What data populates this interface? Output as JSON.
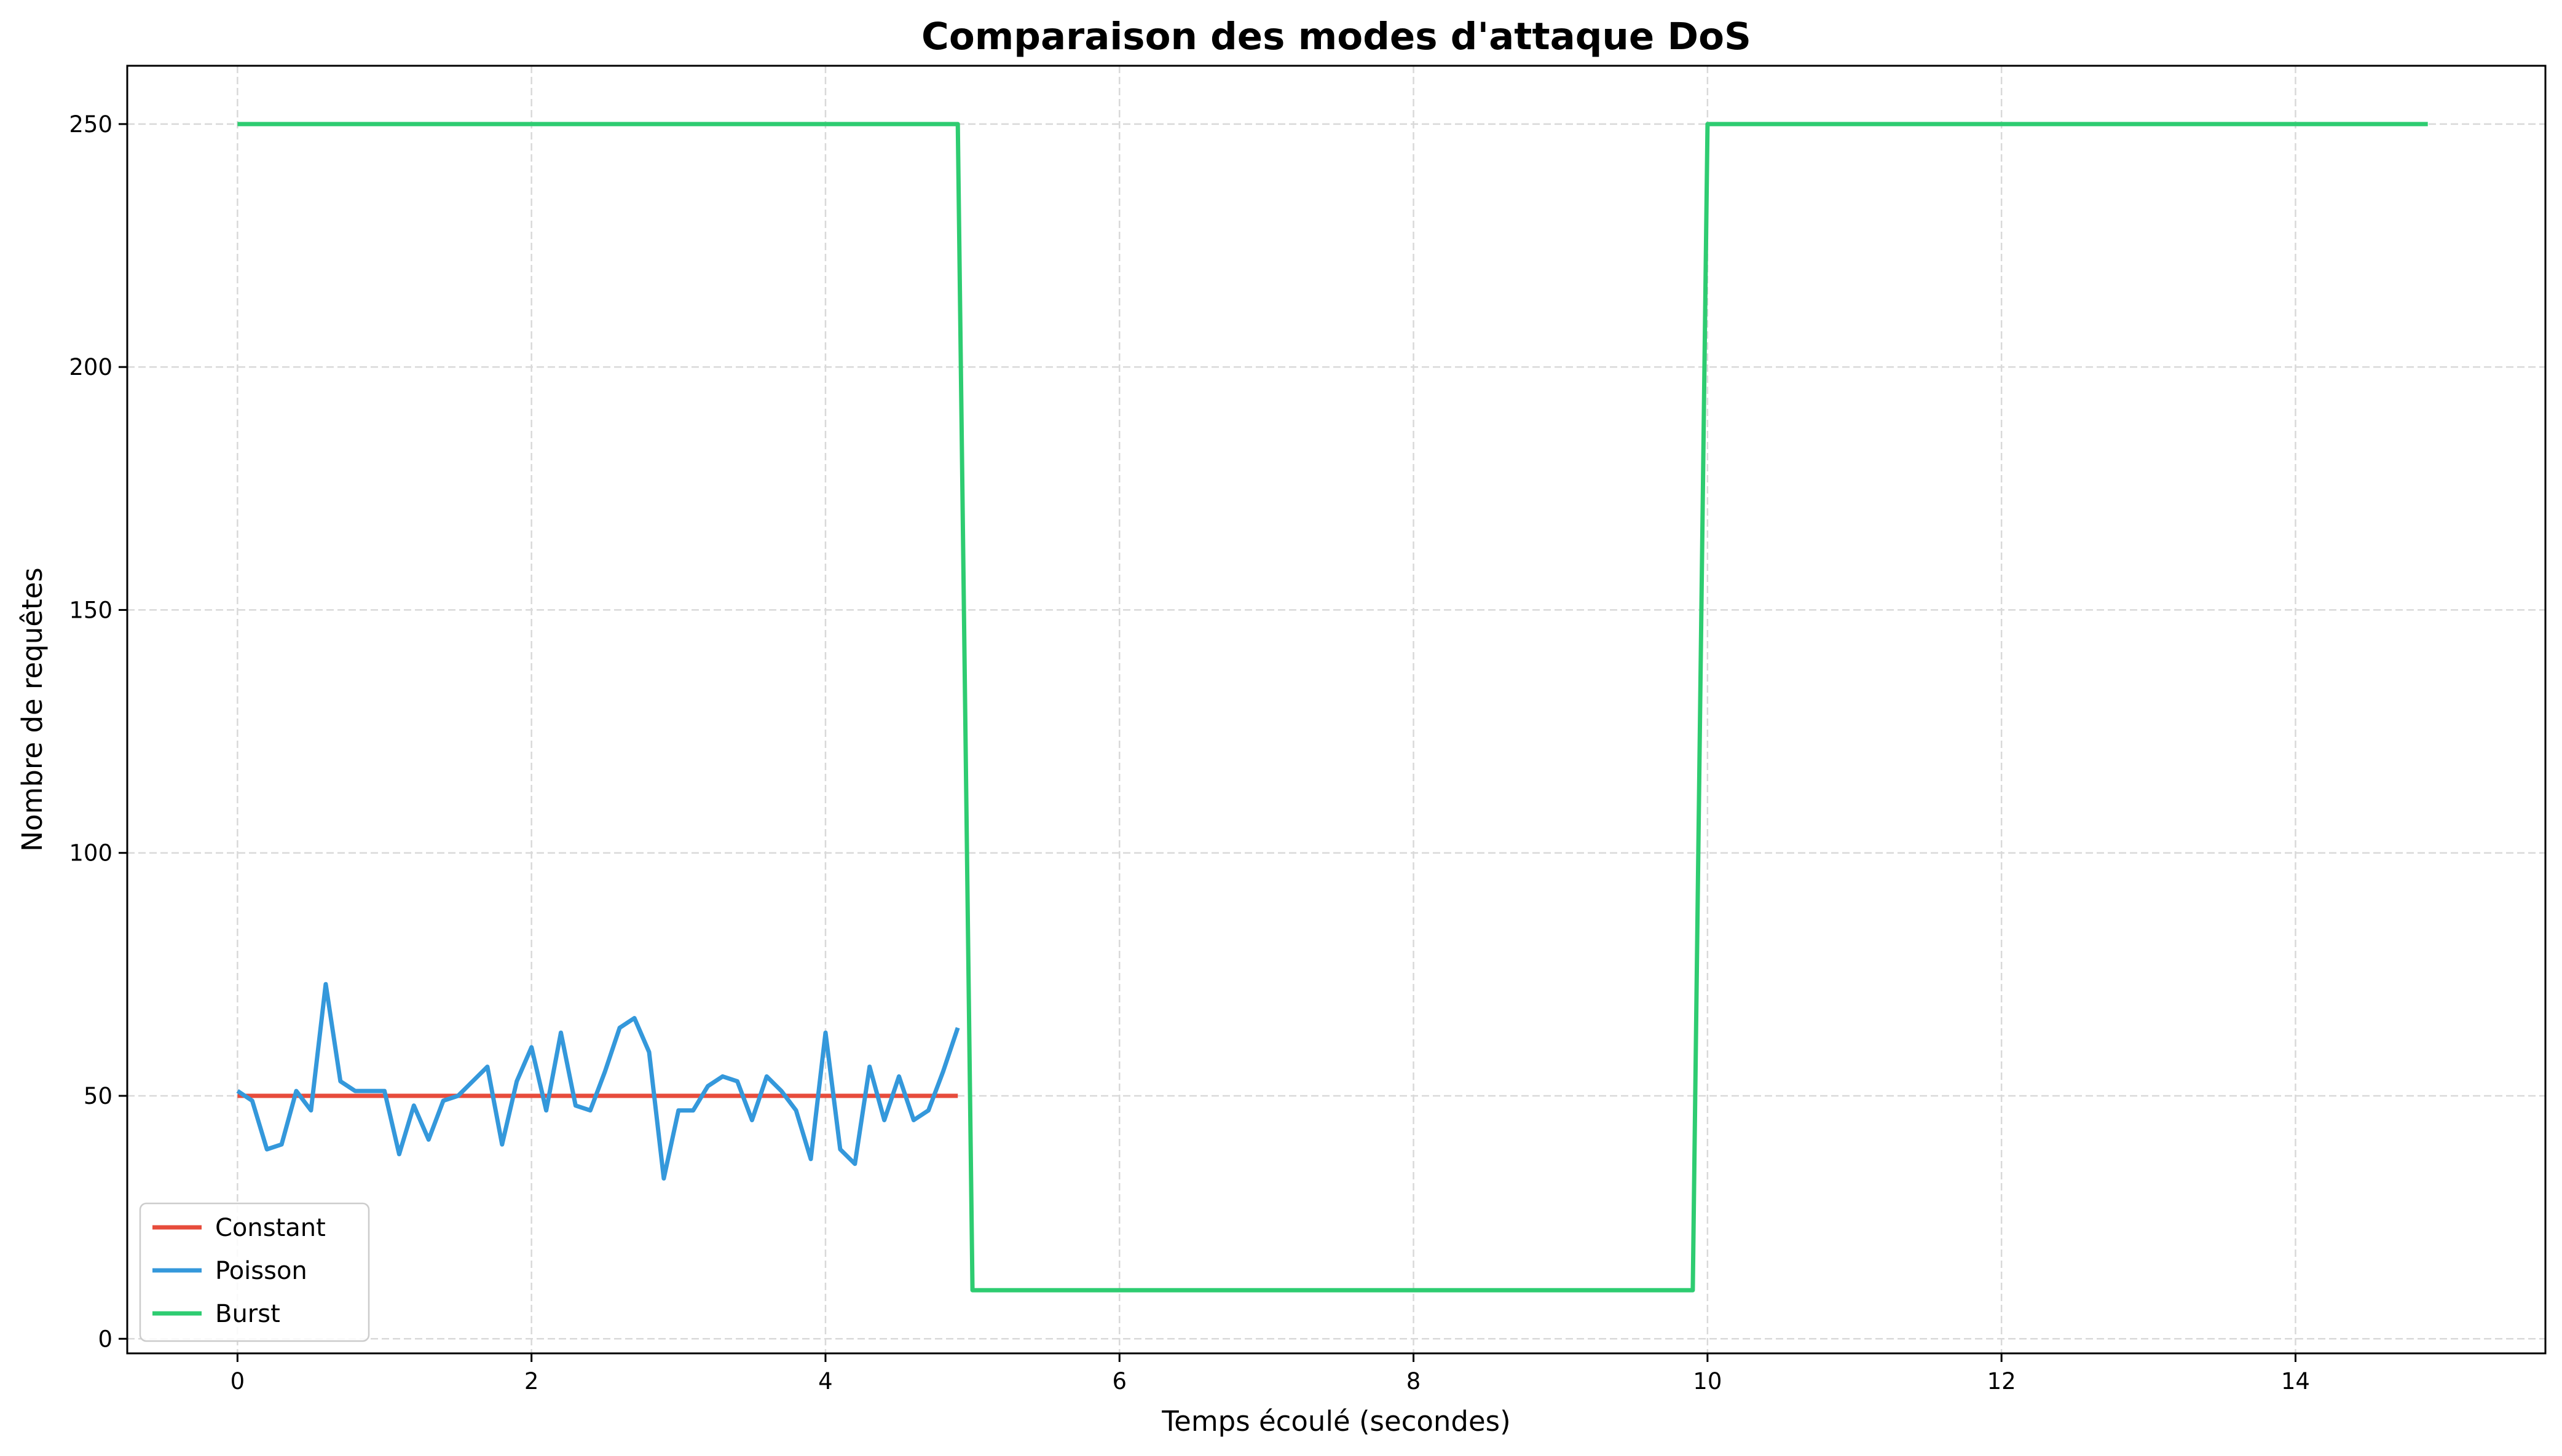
{
  "chart_data": {
    "type": "line",
    "title": "Comparaison des modes d'attaque DoS",
    "xlabel": "Temps écoulé (secondes)",
    "ylabel": "Nombre de requêtes",
    "xlim": [
      -0.75,
      15.7
    ],
    "ylim": [
      -3,
      262
    ],
    "xticks": [
      0,
      2,
      4,
      6,
      8,
      10,
      12,
      14
    ],
    "yticks": [
      0,
      50,
      100,
      150,
      200,
      250
    ],
    "grid": true,
    "legend_position": "lower-left",
    "series": [
      {
        "name": "Constant",
        "color": "#e74c3c",
        "x": [
          0,
          4.9
        ],
        "y": [
          50,
          50
        ]
      },
      {
        "name": "Poisson",
        "color": "#3498db",
        "x": [
          0,
          0.1,
          0.2,
          0.3,
          0.4,
          0.5,
          0.6,
          0.7,
          0.8,
          0.9,
          1.0,
          1.1,
          1.2,
          1.3,
          1.4,
          1.5,
          1.6,
          1.7,
          1.8,
          1.9,
          2.0,
          2.1,
          2.2,
          2.3,
          2.4,
          2.5,
          2.6,
          2.7,
          2.8,
          2.9,
          3.0,
          3.1,
          3.2,
          3.3,
          3.4,
          3.5,
          3.6,
          3.7,
          3.8,
          3.9,
          4.0,
          4.1,
          4.2,
          4.3,
          4.4,
          4.5,
          4.6,
          4.7,
          4.8,
          4.9
        ],
        "y": [
          51,
          49,
          39,
          40,
          51,
          47,
          73,
          53,
          51,
          51,
          51,
          38,
          48,
          41,
          49,
          50,
          53,
          56,
          40,
          53,
          60,
          47,
          63,
          48,
          47,
          55,
          64,
          66,
          59,
          33,
          47,
          47,
          52,
          54,
          53,
          45,
          54,
          51,
          47,
          37,
          63,
          39,
          36,
          56,
          45,
          54,
          45,
          47,
          55,
          64
        ]
      },
      {
        "name": "Burst",
        "color": "#2ecc71",
        "x": [
          0,
          4.9,
          5.0,
          9.9,
          10.0,
          14.9
        ],
        "y": [
          250,
          250,
          10,
          10,
          250,
          250
        ]
      }
    ]
  }
}
